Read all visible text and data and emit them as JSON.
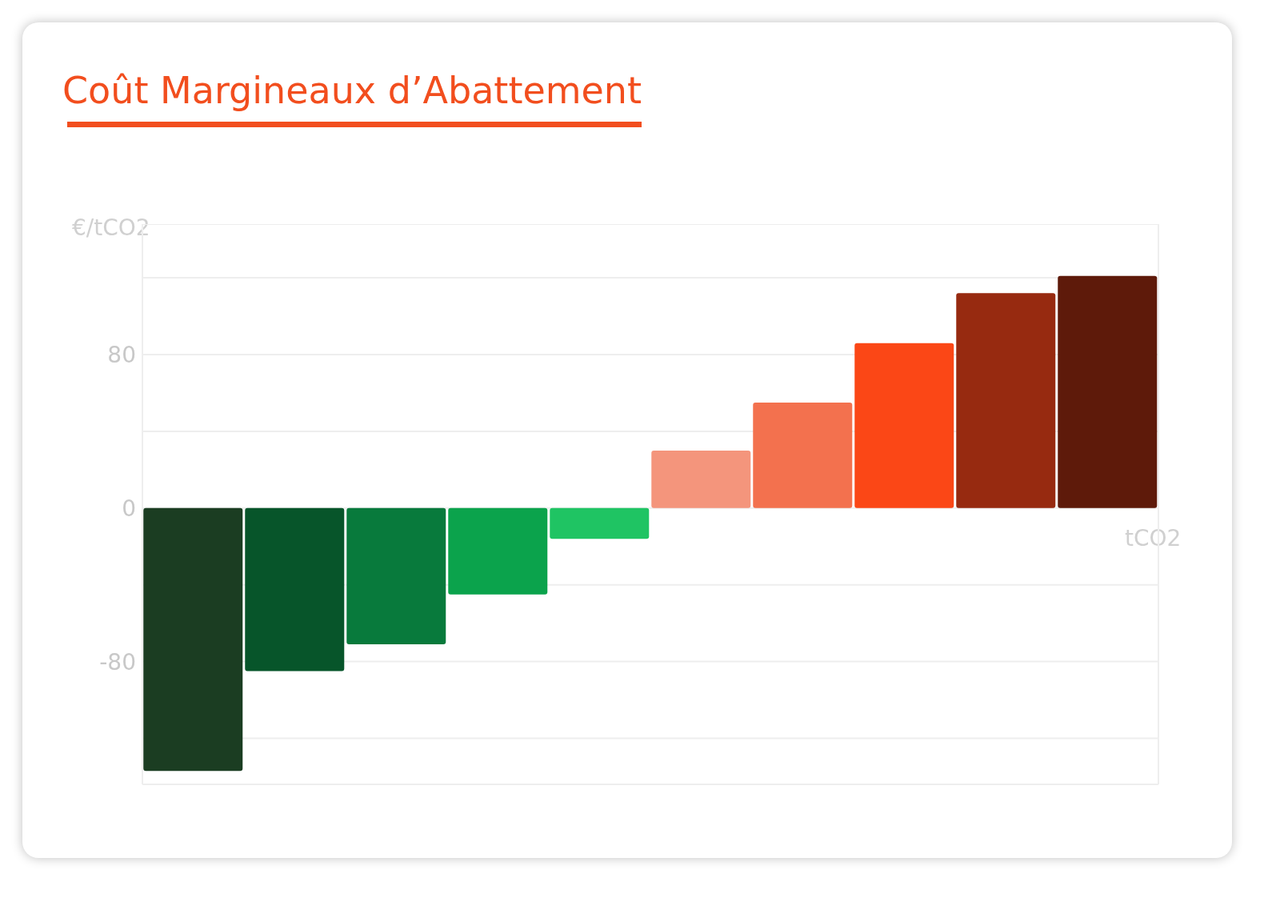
{
  "chart_data": {
    "type": "bar",
    "title": "Coût Margineaux d’Abattement",
    "ylabel": "€/tCO2",
    "xlabel": "tCO2",
    "categories": [
      null,
      null,
      null,
      null,
      null,
      null,
      null,
      null,
      null,
      null
    ],
    "values": [
      -137,
      -85,
      -71,
      -45,
      -16,
      30,
      55,
      86,
      112,
      121
    ],
    "colors": [
      "#1b3d22",
      "#07552a",
      "#087a3c",
      "#0ba34c",
      "#1fc463",
      "#f4957c",
      "#f3714e",
      "#fb4716",
      "#972a10",
      "#5e1a0a"
    ],
    "ylim": [
      -144,
      148
    ],
    "yticks": [
      {
        "value": -120,
        "label": null
      },
      -80,
      {
        "value": -40,
        "label": null
      },
      0,
      {
        "value": 40,
        "label": null
      },
      80,
      {
        "value": 120,
        "label": null
      }
    ],
    "grid": true,
    "tick_labels": "y"
  }
}
